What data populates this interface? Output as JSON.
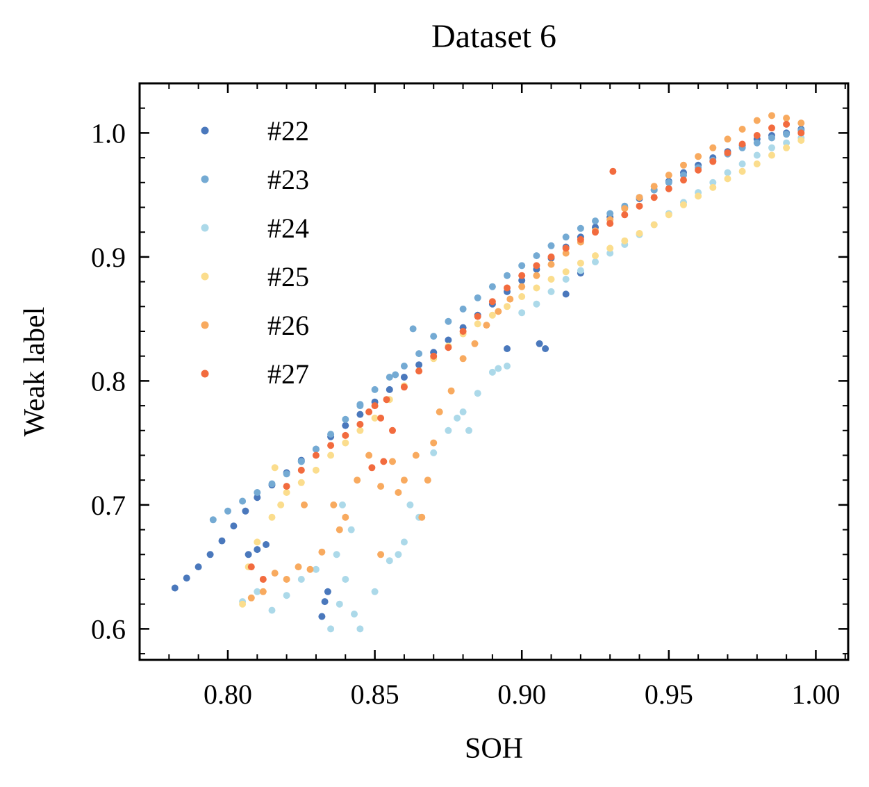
{
  "chart_data": {
    "type": "scatter",
    "title": "Dataset 6",
    "xlabel": "SOH",
    "ylabel": "Weak label",
    "xlim": [
      0.77,
      1.011
    ],
    "ylim": [
      0.575,
      1.04
    ],
    "xticks": [
      "0.80",
      "0.85",
      "0.90",
      "0.95",
      "1.00"
    ],
    "yticks": [
      "0.6",
      "0.7",
      "0.8",
      "0.9",
      "1.0"
    ],
    "xtick_values": [
      0.8,
      0.85,
      0.9,
      0.95,
      1.0
    ],
    "ytick_values": [
      0.6,
      0.7,
      0.8,
      0.9,
      1.0
    ],
    "grid": false,
    "legend_position": "top-left",
    "series": [
      {
        "name": "#22",
        "color": "#4a78bc",
        "x": [
          0.782,
          0.786,
          0.79,
          0.794,
          0.798,
          0.802,
          0.806,
          0.81,
          0.815,
          0.82,
          0.825,
          0.83,
          0.835,
          0.84,
          0.845,
          0.85,
          0.855,
          0.86,
          0.865,
          0.87,
          0.875,
          0.88,
          0.885,
          0.89,
          0.895,
          0.9,
          0.905,
          0.91,
          0.915,
          0.92,
          0.925,
          0.93,
          0.935,
          0.94,
          0.945,
          0.95,
          0.955,
          0.96,
          0.965,
          0.97,
          0.975,
          0.98,
          0.985,
          0.99,
          0.995,
          0.832,
          0.833,
          0.834,
          0.807,
          0.81,
          0.813,
          0.906,
          0.908,
          0.895,
          0.92,
          0.915
        ],
        "y": [
          0.633,
          0.641,
          0.65,
          0.66,
          0.671,
          0.683,
          0.695,
          0.706,
          0.716,
          0.726,
          0.736,
          0.745,
          0.755,
          0.764,
          0.773,
          0.783,
          0.793,
          0.803,
          0.813,
          0.823,
          0.833,
          0.843,
          0.853,
          0.862,
          0.872,
          0.881,
          0.89,
          0.899,
          0.908,
          0.916,
          0.924,
          0.932,
          0.94,
          0.947,
          0.954,
          0.961,
          0.968,
          0.974,
          0.98,
          0.985,
          0.99,
          0.995,
          0.998,
          1.0,
          1.003,
          0.61,
          0.622,
          0.63,
          0.66,
          0.664,
          0.668,
          0.83,
          0.826,
          0.826,
          0.887,
          0.87
        ]
      },
      {
        "name": "#23",
        "color": "#74aad3",
        "x": [
          0.795,
          0.8,
          0.805,
          0.81,
          0.815,
          0.82,
          0.825,
          0.83,
          0.835,
          0.84,
          0.845,
          0.85,
          0.855,
          0.86,
          0.865,
          0.87,
          0.875,
          0.88,
          0.885,
          0.89,
          0.895,
          0.9,
          0.905,
          0.91,
          0.915,
          0.92,
          0.925,
          0.93,
          0.935,
          0.94,
          0.945,
          0.95,
          0.955,
          0.96,
          0.965,
          0.97,
          0.975,
          0.98,
          0.985,
          0.99,
          0.995,
          0.863,
          0.857,
          0.845,
          0.825
        ],
        "y": [
          0.688,
          0.695,
          0.703,
          0.71,
          0.717,
          0.725,
          0.735,
          0.745,
          0.757,
          0.769,
          0.781,
          0.793,
          0.803,
          0.812,
          0.822,
          0.836,
          0.848,
          0.858,
          0.867,
          0.876,
          0.885,
          0.893,
          0.901,
          0.909,
          0.916,
          0.923,
          0.929,
          0.935,
          0.941,
          0.948,
          0.954,
          0.96,
          0.966,
          0.972,
          0.978,
          0.983,
          0.988,
          0.992,
          0.996,
          0.999,
          1.002,
          0.842,
          0.805,
          0.78,
          0.735
        ]
      },
      {
        "name": "#24",
        "color": "#acd9e9",
        "x": [
          0.805,
          0.81,
          0.815,
          0.82,
          0.825,
          0.83,
          0.835,
          0.838,
          0.84,
          0.843,
          0.845,
          0.85,
          0.855,
          0.86,
          0.865,
          0.87,
          0.875,
          0.88,
          0.885,
          0.89,
          0.895,
          0.9,
          0.905,
          0.91,
          0.915,
          0.92,
          0.925,
          0.93,
          0.935,
          0.94,
          0.945,
          0.95,
          0.955,
          0.96,
          0.965,
          0.97,
          0.975,
          0.98,
          0.985,
          0.99,
          0.995,
          0.837,
          0.842,
          0.839,
          0.878,
          0.882,
          0.892,
          0.858,
          0.862
        ],
        "y": [
          0.622,
          0.63,
          0.615,
          0.627,
          0.64,
          0.648,
          0.6,
          0.62,
          0.64,
          0.612,
          0.6,
          0.63,
          0.655,
          0.67,
          0.69,
          0.742,
          0.76,
          0.775,
          0.79,
          0.807,
          0.812,
          0.855,
          0.862,
          0.872,
          0.882,
          0.889,
          0.896,
          0.903,
          0.91,
          0.918,
          0.926,
          0.935,
          0.944,
          0.952,
          0.96,
          0.968,
          0.975,
          0.982,
          0.988,
          0.992,
          0.996,
          0.66,
          0.68,
          0.7,
          0.77,
          0.76,
          0.81,
          0.66,
          0.7
        ]
      },
      {
        "name": "#25",
        "color": "#fbdd8d",
        "x": [
          0.805,
          0.81,
          0.815,
          0.818,
          0.82,
          0.825,
          0.83,
          0.835,
          0.84,
          0.845,
          0.85,
          0.855,
          0.86,
          0.865,
          0.87,
          0.875,
          0.88,
          0.885,
          0.89,
          0.895,
          0.9,
          0.905,
          0.91,
          0.915,
          0.92,
          0.925,
          0.93,
          0.935,
          0.94,
          0.945,
          0.95,
          0.955,
          0.96,
          0.965,
          0.97,
          0.975,
          0.98,
          0.985,
          0.99,
          0.995,
          0.807,
          0.816
        ],
        "y": [
          0.62,
          0.67,
          0.69,
          0.7,
          0.71,
          0.718,
          0.728,
          0.74,
          0.75,
          0.76,
          0.77,
          0.785,
          0.796,
          0.808,
          0.818,
          0.828,
          0.838,
          0.846,
          0.853,
          0.86,
          0.868,
          0.875,
          0.882,
          0.888,
          0.895,
          0.901,
          0.907,
          0.913,
          0.919,
          0.926,
          0.934,
          0.942,
          0.949,
          0.956,
          0.963,
          0.969,
          0.975,
          0.982,
          0.988,
          0.994,
          0.65,
          0.73
        ]
      },
      {
        "name": "#26",
        "color": "#f8aa5f",
        "x": [
          0.808,
          0.812,
          0.816,
          0.82,
          0.824,
          0.828,
          0.832,
          0.836,
          0.84,
          0.844,
          0.848,
          0.852,
          0.856,
          0.86,
          0.864,
          0.868,
          0.872,
          0.876,
          0.88,
          0.884,
          0.888,
          0.892,
          0.896,
          0.9,
          0.905,
          0.91,
          0.915,
          0.92,
          0.925,
          0.93,
          0.935,
          0.94,
          0.945,
          0.95,
          0.955,
          0.96,
          0.965,
          0.97,
          0.975,
          0.98,
          0.985,
          0.99,
          0.995,
          0.826,
          0.838,
          0.852,
          0.866,
          0.87,
          0.858
        ],
        "y": [
          0.625,
          0.63,
          0.645,
          0.64,
          0.65,
          0.648,
          0.662,
          0.7,
          0.69,
          0.72,
          0.74,
          0.715,
          0.735,
          0.72,
          0.74,
          0.72,
          0.775,
          0.792,
          0.818,
          0.83,
          0.845,
          0.856,
          0.866,
          0.876,
          0.885,
          0.894,
          0.903,
          0.912,
          0.921,
          0.93,
          0.939,
          0.948,
          0.957,
          0.966,
          0.974,
          0.981,
          0.988,
          0.995,
          1.003,
          1.01,
          1.014,
          1.012,
          1.008,
          0.7,
          0.68,
          0.66,
          0.69,
          0.75,
          0.71
        ]
      },
      {
        "name": "#27",
        "color": "#f26b3e",
        "x": [
          0.808,
          0.812,
          0.82,
          0.825,
          0.83,
          0.835,
          0.84,
          0.845,
          0.848,
          0.85,
          0.852,
          0.854,
          0.856,
          0.86,
          0.865,
          0.87,
          0.875,
          0.88,
          0.885,
          0.89,
          0.895,
          0.9,
          0.905,
          0.91,
          0.915,
          0.92,
          0.925,
          0.93,
          0.935,
          0.94,
          0.945,
          0.95,
          0.955,
          0.96,
          0.965,
          0.97,
          0.975,
          0.98,
          0.985,
          0.99,
          0.995,
          0.931,
          0.853,
          0.849
        ],
        "y": [
          0.65,
          0.64,
          0.715,
          0.728,
          0.74,
          0.748,
          0.756,
          0.765,
          0.775,
          0.78,
          0.77,
          0.785,
          0.76,
          0.795,
          0.808,
          0.82,
          0.827,
          0.84,
          0.852,
          0.864,
          0.875,
          0.885,
          0.893,
          0.9,
          0.907,
          0.914,
          0.92,
          0.927,
          0.934,
          0.941,
          0.948,
          0.955,
          0.962,
          0.97,
          0.977,
          0.984,
          0.991,
          0.998,
          1.004,
          1.007,
          1.0,
          0.969,
          0.735,
          0.73
        ]
      }
    ]
  }
}
